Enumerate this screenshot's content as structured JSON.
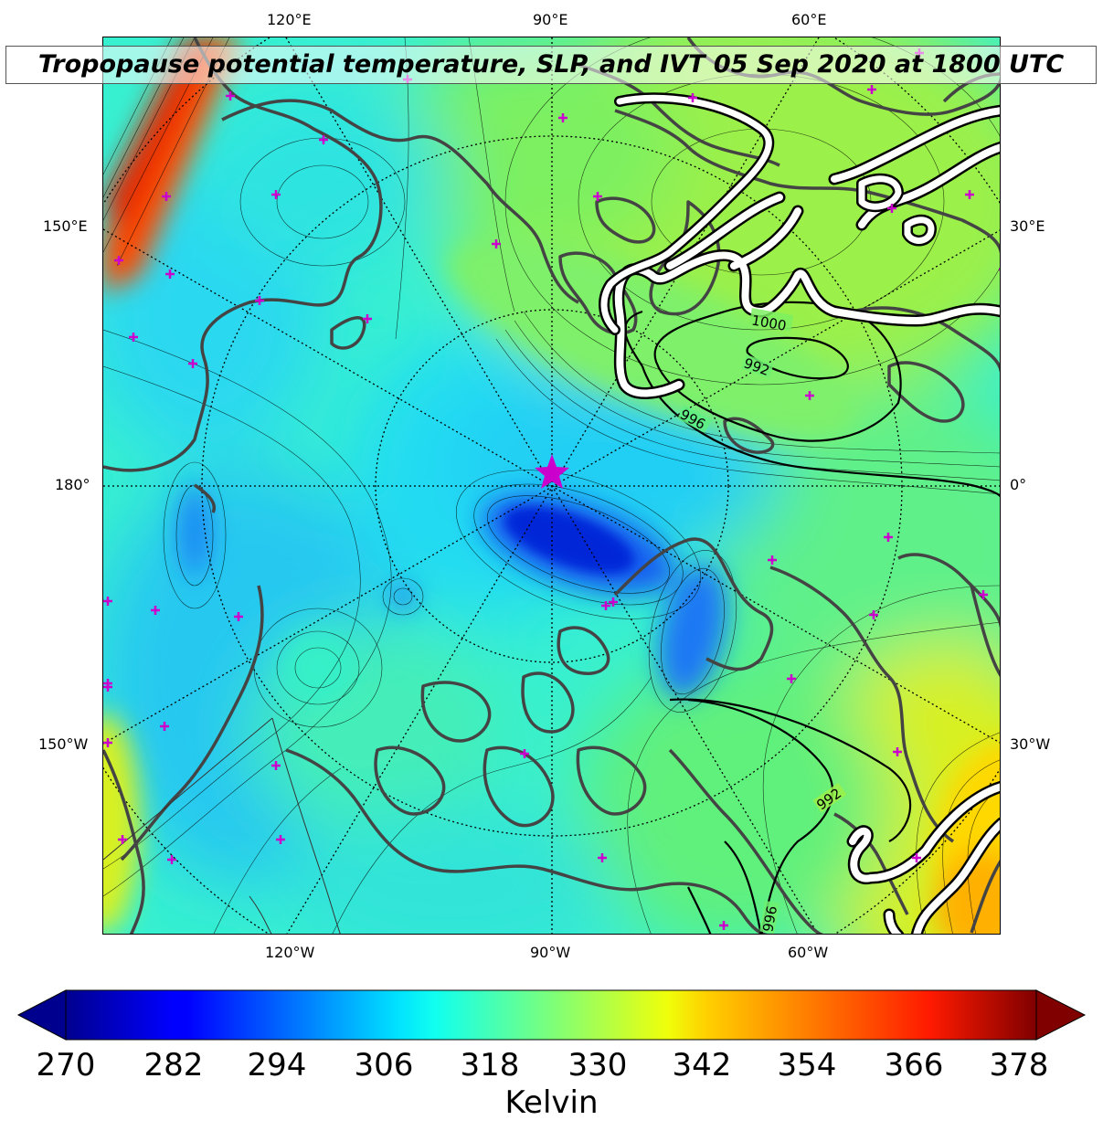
{
  "title": "Tropopause potential temperature, SLP, and IVT 05 Sep 2020 at 1800 UTC",
  "map": {
    "projection": "north-polar-stereographic",
    "lon_labels_top": [
      "120°E",
      "90°E",
      "60°E"
    ],
    "lon_labels_bottom": [
      "120°W",
      "90°W",
      "60°W"
    ],
    "lon_labels_left": [
      "150°E",
      "180°",
      "150°W"
    ],
    "lon_labels_right": [
      "30°E",
      "0°",
      "30°W"
    ],
    "slp_contour_labels": [
      "1000",
      "992",
      "996",
      "992",
      "996"
    ],
    "marker": "star",
    "marker_color": "#cc00cc",
    "coastline_color": "#444444",
    "ivt_contour_color": "#ffffff"
  },
  "colorbar": {
    "colormap": "jet",
    "ticks": [
      "270",
      "282",
      "294",
      "306",
      "318",
      "330",
      "342",
      "354",
      "366",
      "378"
    ],
    "range": [
      270,
      378
    ],
    "extend": "both",
    "label": "Kelvin"
  }
}
